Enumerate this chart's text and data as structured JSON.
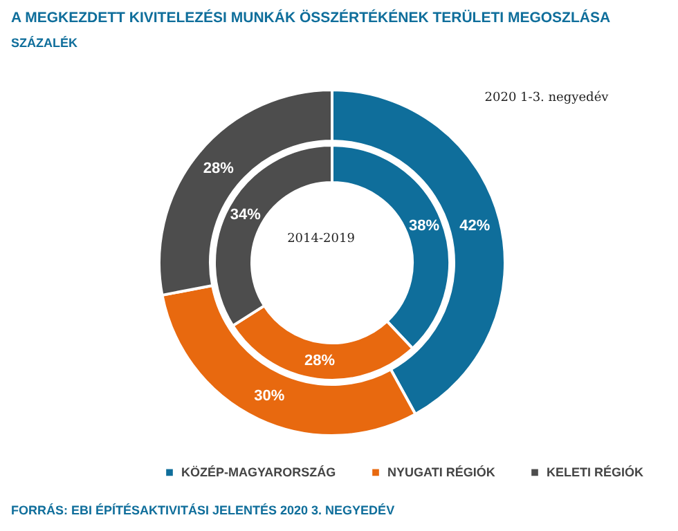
{
  "chart_data": {
    "type": "donut",
    "title": "A MEGKEZDETT KIVITELEZÉSI MUNKÁK ÖSSZÉRTÉKÉNEK TERÜLETI MEGOSZLÁSA",
    "subtitle": "SZÁZALÉK",
    "categories": [
      "KÖZÉP-MAGYARORSZÁG",
      "NYUGATI RÉGIÓK",
      "KELETI RÉGIÓK"
    ],
    "colors": [
      "#0f6e9b",
      "#e8690f",
      "#4d4d4d"
    ],
    "series": [
      {
        "name": "2020 1-3. negyedév",
        "values": [
          42,
          30,
          28
        ],
        "value_labels": [
          "42%",
          "30%",
          "28%"
        ]
      },
      {
        "name": "2014-2019",
        "values": [
          38,
          28,
          34
        ],
        "value_labels": [
          "38%",
          "28%",
          "34%"
        ]
      }
    ],
    "legend": "bottom",
    "annotations": [
      "FORRÁS: EBI ÉPÍTÉSAKTIVITÁSI JELENTÉS 2020 3. NEGYEDÉV"
    ]
  }
}
